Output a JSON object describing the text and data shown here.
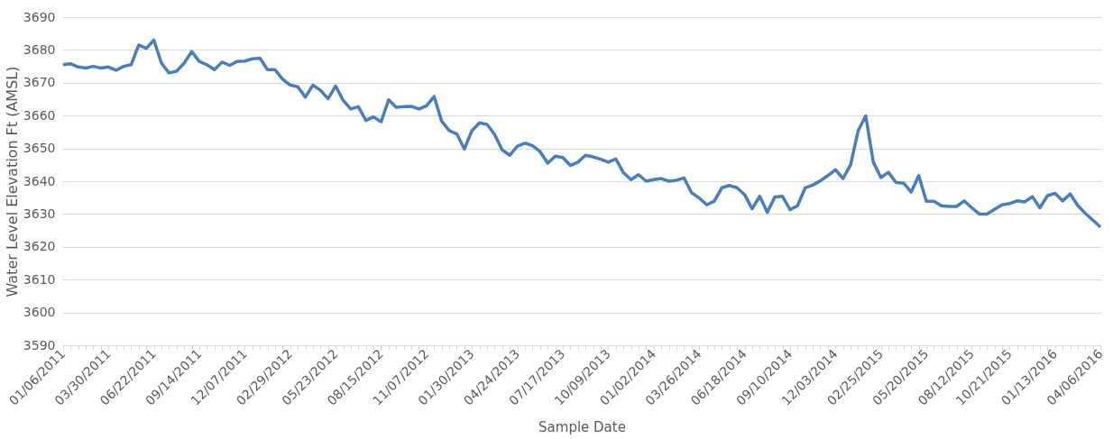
{
  "chart_data": {
    "type": "line",
    "xlabel": "Sample Date",
    "ylabel": "Water Level Elevation Ft (AMSL)",
    "ylim": [
      3590,
      3690
    ],
    "yticks": [
      3590,
      3600,
      3610,
      3620,
      3630,
      3640,
      3650,
      3660,
      3670,
      3680,
      3690
    ],
    "grid": "y",
    "marker": "none",
    "line_style": "solid",
    "categories": [
      "01/06/2011",
      null,
      null,
      null,
      null,
      null,
      "03/30/2011",
      null,
      null,
      null,
      null,
      null,
      "06/22/2011",
      null,
      null,
      null,
      null,
      null,
      "09/14/2011",
      null,
      null,
      null,
      null,
      null,
      "12/07/2011",
      null,
      null,
      null,
      null,
      null,
      "02/29/2012",
      null,
      null,
      null,
      null,
      null,
      "05/23/2012",
      null,
      null,
      null,
      null,
      null,
      "08/15/2012",
      null,
      null,
      null,
      null,
      null,
      "11/07/2012",
      null,
      null,
      null,
      null,
      null,
      "01/30/2013",
      null,
      null,
      null,
      null,
      null,
      "04/24/2013",
      null,
      null,
      null,
      null,
      null,
      "07/17/2013",
      null,
      null,
      null,
      null,
      null,
      "10/09/2013",
      null,
      null,
      null,
      null,
      null,
      "01/02/2014",
      null,
      null,
      null,
      null,
      null,
      "03/26/2014",
      null,
      null,
      null,
      null,
      null,
      "06/18/2014",
      null,
      null,
      null,
      null,
      null,
      "09/10/2014",
      null,
      null,
      null,
      null,
      null,
      "12/03/2014",
      null,
      null,
      null,
      null,
      null,
      "02/25/2015",
      null,
      null,
      null,
      null,
      null,
      "05/20/2015",
      null,
      null,
      null,
      null,
      null,
      "08/12/2015",
      null,
      null,
      null,
      null,
      "10/21/2015",
      null,
      null,
      null,
      null,
      null,
      "01/13/2016",
      null,
      null,
      null,
      null,
      null,
      "04/06/2016"
    ],
    "series": [
      {
        "color": "#4a7ebb",
        "values": [
          3675.5,
          3675.8,
          3674.8,
          3674.5,
          3675,
          3674.5,
          3674.8,
          3673.8,
          3675,
          3675.5,
          3681.5,
          3680.5,
          3683,
          3676,
          3673,
          3673.5,
          3676,
          3679.5,
          3676.5,
          3675.5,
          3674,
          3676.3,
          3675.3,
          3676.5,
          3676.6,
          3677.3,
          3677.5,
          3674,
          3674,
          3671.1,
          3669.3,
          3668.8,
          3665.6,
          3669.3,
          3667.7,
          3665.1,
          3669,
          3664.6,
          3662,
          3662.7,
          3658.5,
          3659.6,
          3658.1,
          3664.8,
          3662.5,
          3662.7,
          3662.8,
          3662,
          3663,
          3665.8,
          3658.3,
          3655.4,
          3654.4,
          3649.8,
          3655.4,
          3657.8,
          3657.3,
          3654.2,
          3649.5,
          3647.9,
          3650.7,
          3651.6,
          3650.8,
          3649,
          3645.5,
          3647.6,
          3647.2,
          3644.8,
          3645.8,
          3647.9,
          3647.4,
          3646.7,
          3645.8,
          3646.8,
          3642.6,
          3640.5,
          3642,
          3640,
          3640.5,
          3640.8,
          3640,
          3640.3,
          3641,
          3636.5,
          3634.9,
          3632.8,
          3633.9,
          3638,
          3638.7,
          3638,
          3635.9,
          3631.6,
          3635.4,
          3630.5,
          3635.2,
          3635.4,
          3631.3,
          3632.5,
          3638,
          3638.8,
          3640.1,
          3641.7,
          3643.5,
          3640.8,
          3645,
          3655.4,
          3659.9,
          3645.8,
          3641.1,
          3642.7,
          3639.6,
          3639.4,
          3636.7,
          3641.7,
          3633.9,
          3633.9,
          3632.5,
          3632.3,
          3632.3,
          3634,
          3631.9,
          3630,
          3630,
          3631.4,
          3632.8,
          3633.2,
          3634,
          3633.7,
          3635.3,
          3631.9,
          3635.6,
          3636.3,
          3634,
          3636.1,
          3632.6,
          3630.2,
          3628.1,
          3626
        ]
      }
    ]
  }
}
